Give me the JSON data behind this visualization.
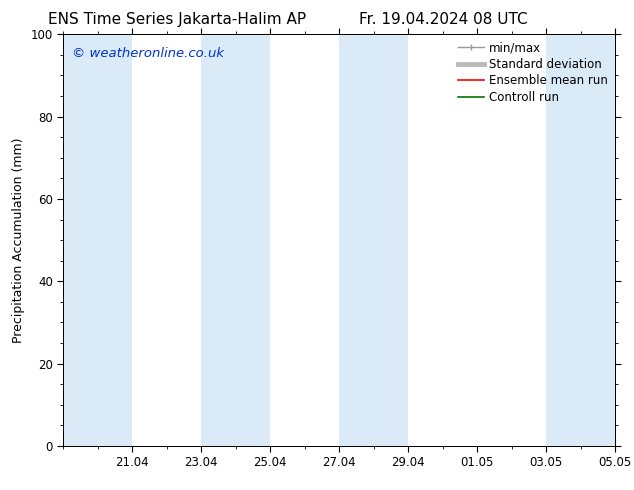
{
  "title_left": "ENS Time Series Jakarta-Halim AP",
  "title_right": "Fr. 19.04.2024 08 UTC",
  "ylabel": "Precipitation Accumulation (mm)",
  "watermark": "© weatheronline.co.uk",
  "watermark_color": "#0033cc",
  "ylim": [
    0,
    100
  ],
  "yticks": [
    0,
    20,
    40,
    60,
    80,
    100
  ],
  "background_color": "#ffffff",
  "plot_bg_color": "#ffffff",
  "shade_color": "#daeaf7",
  "shaded_bands": [
    [
      0,
      2
    ],
    [
      4,
      6
    ],
    [
      8,
      10
    ],
    [
      14,
      16
    ]
  ],
  "x_min": 0,
  "x_max": 16,
  "xtick_positions": [
    2,
    4,
    6,
    8,
    10,
    12,
    14,
    16
  ],
  "xtick_labels": [
    "21.04",
    "23.04",
    "25.04",
    "27.04",
    "29.04",
    "01.05",
    "03.05",
    "05.05"
  ],
  "legend_entries": [
    {
      "label": "min/max",
      "color": "#999999",
      "lw": 1.0,
      "type": "minmax"
    },
    {
      "label": "Standard deviation",
      "color": "#bbbbbb",
      "lw": 3.5,
      "type": "line"
    },
    {
      "label": "Ensemble mean run",
      "color": "#ff0000",
      "lw": 1.2,
      "type": "line"
    },
    {
      "label": "Controll run",
      "color": "#007700",
      "lw": 1.2,
      "type": "line"
    }
  ],
  "title_fontsize": 11,
  "axis_label_fontsize": 9,
  "tick_fontsize": 8.5,
  "legend_fontsize": 8.5,
  "watermark_fontsize": 9.5
}
